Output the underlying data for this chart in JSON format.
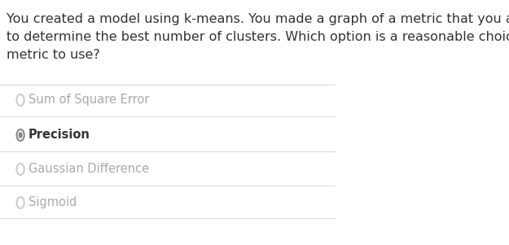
{
  "question": "You created a model using k-means. You made a graph of a metric that you are using\nto determine the best number of clusters. Which option is a reasonable choice as a\nmetric to use?",
  "options": [
    {
      "label": "Sum of Square Error",
      "selected": false,
      "bold": false
    },
    {
      "label": "Precision",
      "selected": true,
      "bold": true
    },
    {
      "label": "Gaussian Difference",
      "selected": false,
      "bold": false
    },
    {
      "label": "Sigmoid",
      "selected": false,
      "bold": false
    }
  ],
  "bg_color": "#ffffff",
  "text_color": "#333333",
  "option_text_color_unselected": "#aaaaaa",
  "option_text_color_selected": "#333333",
  "line_color": "#dddddd",
  "radio_unselected_color": "#cccccc",
  "radio_selected_outer": "#888888",
  "radio_selected_inner": "#888888",
  "question_fontsize": 11.5,
  "option_fontsize": 10.5
}
